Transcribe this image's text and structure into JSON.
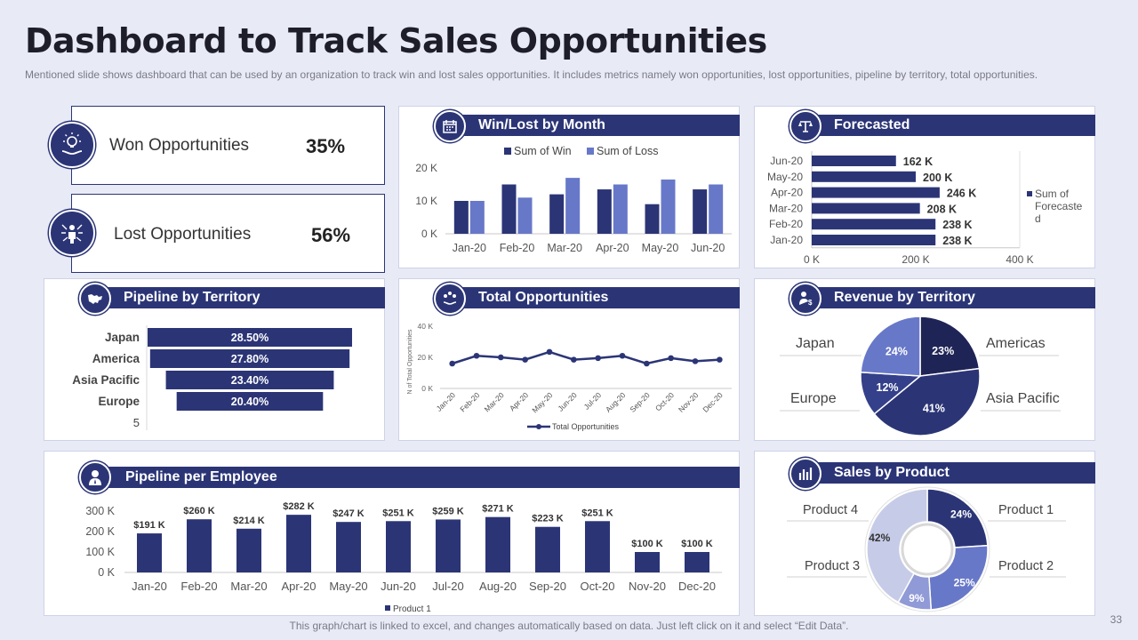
{
  "page": {
    "title": "Dashboard to Track Sales Opportunities",
    "subtitle": "Mentioned slide shows dashboard that can be used by an organization to track win and lost sales opportunities. It includes metrics namely won opportunities, lost opportunities, pipeline by territory, total opportunities.",
    "footnote": "This graph/chart is linked to excel, and changes automatically based on data. Just left click on it and select “Edit Data”.",
    "page_number": "33"
  },
  "colors": {
    "navy": "#2b3576",
    "mid_blue": "#6878c8",
    "light_blue": "#c6cbe8",
    "bg": "#e8ebf6"
  },
  "kpis": {
    "won": {
      "label": "Won Opportunities",
      "value": "35%"
    },
    "lost": {
      "label": "Lost Opportunities",
      "value": "56%"
    }
  },
  "panels": {
    "win_lost": "Win/Lost by Month",
    "forecasted": "Forecasted",
    "pipeline_territory": "Pipeline by Territory",
    "total_opps": "Total Opportunities",
    "revenue_territory": "Revenue by Territory",
    "pipeline_employee": "Pipeline per Employee",
    "sales_product": "Sales by Product"
  },
  "chart_data": [
    {
      "id": "win_lost",
      "type": "bar",
      "title": "Win/Lost by Month",
      "categories": [
        "Jan-20",
        "Feb-20",
        "Mar-20",
        "Apr-20",
        "May-20",
        "Jun-20"
      ],
      "series": [
        {
          "name": "Sum of Win",
          "values": [
            10,
            15,
            12,
            13.5,
            9,
            13.5
          ]
        },
        {
          "name": "Sum of Loss",
          "values": [
            10,
            11,
            17,
            15,
            16.5,
            15
          ]
        }
      ],
      "ylim": [
        0,
        20
      ],
      "yticks": [
        "0 K",
        "10 K",
        "20 K"
      ],
      "legend": "top"
    },
    {
      "id": "forecasted",
      "type": "bar",
      "orientation": "horizontal",
      "title": "Forecasted",
      "categories": [
        "Jun-20",
        "May-20",
        "Apr-20",
        "Mar-20",
        "Feb-20",
        "Jan-20"
      ],
      "values": [
        162,
        200,
        246,
        208,
        238,
        238
      ],
      "labels": [
        "162 K",
        "200 K",
        "246 K",
        "208 K",
        "238 K",
        "238 K"
      ],
      "xticks": [
        "0 K",
        "200 K",
        "400 K"
      ],
      "xlim": [
        0,
        400
      ],
      "legend_label": "Sum of Forecasted",
      "legend": "right"
    },
    {
      "id": "pipeline_territory",
      "type": "bar",
      "orientation": "horizontal",
      "style": "funnel",
      "title": "Pipeline by Territory",
      "categories": [
        "Japan",
        "America",
        "Asia Pacific",
        "Europe"
      ],
      "values": [
        28.5,
        27.8,
        23.4,
        20.4
      ],
      "labels": [
        "28.50%",
        "27.80%",
        "23.40%",
        "20.40%"
      ],
      "extra_label": "5"
    },
    {
      "id": "total_opps",
      "type": "line",
      "title": "Total Opportunities",
      "categories": [
        "Jan-20",
        "Feb-20",
        "Mar-20",
        "Apr-20",
        "May-20",
        "Jun-20",
        "Jul-20",
        "Aug-20",
        "Sep-20",
        "Oct-20",
        "Nov-20",
        "Dec-20"
      ],
      "values": [
        16,
        21,
        20,
        18.5,
        23.5,
        18.5,
        19.5,
        21,
        16,
        19.5,
        17.5,
        18.5
      ],
      "ylim": [
        0,
        40
      ],
      "yticks": [
        "0 K",
        "20 K",
        "40 K"
      ],
      "ylabel": "N of Total Opportunities",
      "legend_label": "Total Opportunities",
      "legend": "bottom"
    },
    {
      "id": "revenue_territory",
      "type": "pie",
      "title": "Revenue by Territory",
      "slices": [
        {
          "label": "Americas",
          "value": 23,
          "text": "23%"
        },
        {
          "label": "Asia Pacific",
          "value": 41,
          "text": "41%"
        },
        {
          "label": "Europe",
          "value": 12,
          "text": "12%"
        },
        {
          "label": "Japan",
          "value": 24,
          "text": "24%"
        }
      ]
    },
    {
      "id": "pipeline_employee",
      "type": "bar",
      "title": "Pipeline per Employee",
      "categories": [
        "Jan-20",
        "Feb-20",
        "Mar-20",
        "Apr-20",
        "May-20",
        "Jun-20",
        "Jul-20",
        "Aug-20",
        "Sep-20",
        "Oct-20",
        "Nov-20",
        "Dec-20"
      ],
      "values": [
        191,
        260,
        214,
        282,
        247,
        251,
        259,
        271,
        223,
        251,
        100,
        100
      ],
      "labels": [
        "$191 K",
        "$260 K",
        "$214 K",
        "$282 K",
        "$247 K",
        "$251 K",
        "$259 K",
        "$271 K",
        "$223 K",
        "$251 K",
        "$100 K",
        "$100 K"
      ],
      "ylim": [
        0,
        300
      ],
      "yticks": [
        "0 K",
        "100 K",
        "200 K",
        "300 K"
      ],
      "legend_label": "Product 1",
      "legend": "bottom"
    },
    {
      "id": "sales_product",
      "type": "pie",
      "style": "donut",
      "title": "Sales by Product",
      "slices": [
        {
          "label": "Product 1",
          "value": 24,
          "text": "24%"
        },
        {
          "label": "Product 2",
          "value": 25,
          "text": "25%"
        },
        {
          "label": "Product 3",
          "value": 9,
          "text": "9%"
        },
        {
          "label": "Product 4",
          "value": 42,
          "text": "42%"
        }
      ]
    }
  ]
}
